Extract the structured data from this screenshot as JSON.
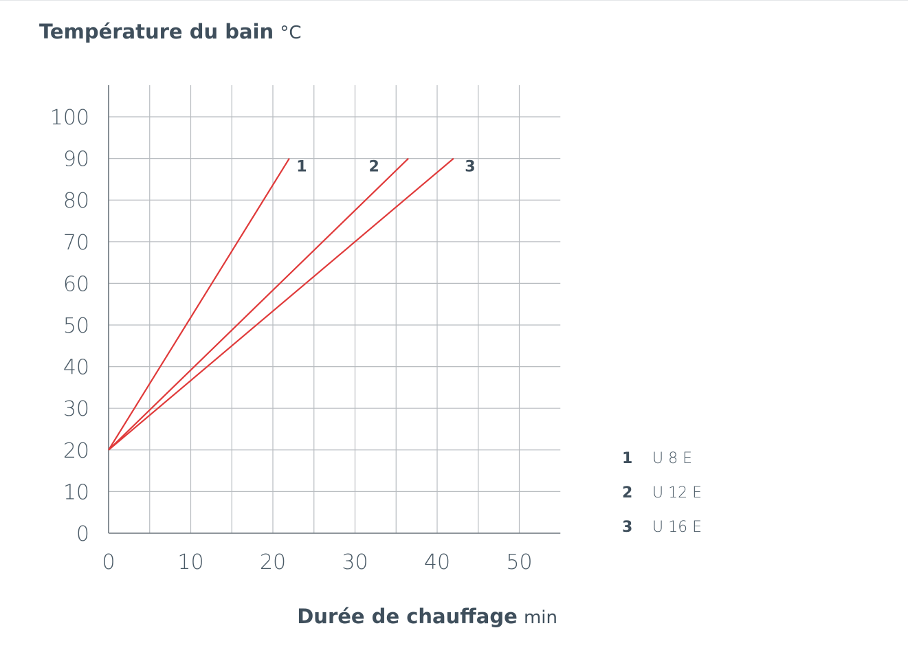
{
  "chart_data": {
    "type": "line",
    "ylabel": "Température du bain",
    "yunit": "°C",
    "xlabel": "Durée de chauffage",
    "xunit": "min",
    "xlim": [
      0,
      55
    ],
    "ylim": [
      0,
      100
    ],
    "xticks": [
      0,
      10,
      20,
      30,
      40,
      50
    ],
    "yticks": [
      0,
      10,
      20,
      30,
      40,
      50,
      60,
      70,
      80,
      90,
      100
    ],
    "grid": true,
    "legend_position": "right",
    "line_color": "#e03a3a",
    "series": [
      {
        "name": "1",
        "legend_label": "U 8 E",
        "x": [
          0,
          22.0
        ],
        "y": [
          20,
          90
        ]
      },
      {
        "name": "2",
        "legend_label": "U 12 E",
        "x": [
          0,
          36.5
        ],
        "y": [
          20,
          90
        ]
      },
      {
        "name": "3",
        "legend_label": "U 16 E",
        "x": [
          0,
          42.0
        ],
        "y": [
          20,
          90
        ]
      }
    ]
  }
}
